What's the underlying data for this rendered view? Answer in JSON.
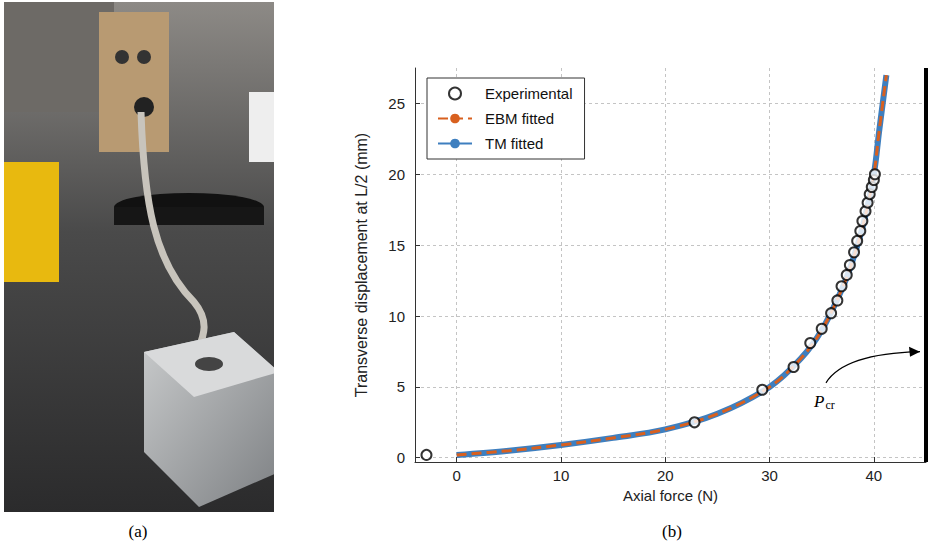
{
  "chart_data": {
    "type": "line",
    "xlabel": "Axial force (N)",
    "ylabel": "Transverse displacement at L/2 (mm)",
    "xlim": [
      -4,
      45
    ],
    "ylim": [
      -0.3,
      27.5
    ],
    "xticks": [
      0,
      10,
      20,
      30,
      40
    ],
    "yticks": [
      0,
      5,
      10,
      15,
      20,
      25
    ],
    "grid": true,
    "legend": "upper left",
    "series": [
      {
        "name": "Experimental",
        "type": "scatter",
        "marker": "open circle",
        "color": "#000000",
        "x": [
          -2.9,
          22.8,
          29.3,
          32.3,
          33.9,
          35.0,
          35.9,
          36.5,
          36.9,
          37.4,
          37.7,
          38.1,
          38.4,
          38.7,
          38.9,
          39.2,
          39.4,
          39.6,
          39.8,
          40.0,
          40.1
        ],
        "values": [
          0.2,
          2.5,
          4.8,
          6.4,
          8.1,
          9.1,
          10.2,
          11.1,
          12.1,
          12.9,
          13.6,
          14.5,
          15.3,
          16.0,
          16.7,
          17.4,
          18.0,
          18.6,
          19.1,
          19.6,
          20.0
        ]
      },
      {
        "name": "EBM fitted",
        "type": "line",
        "line_style": "dashed",
        "color": "#d8601f",
        "x": [
          0,
          5,
          10,
          15,
          20,
          25,
          30,
          33,
          35,
          37,
          38,
          39,
          40,
          40.5,
          41.2
        ],
        "values": [
          0.2,
          0.5,
          0.9,
          1.4,
          2.0,
          3.1,
          5.0,
          7.0,
          9.0,
          12.0,
          14.0,
          16.5,
          20.0,
          23.0,
          27.0
        ]
      },
      {
        "name": "TM fitted",
        "type": "line",
        "line_style": "solid",
        "color": "#3e7fbf",
        "x": [
          0,
          5,
          10,
          15,
          20,
          25,
          30,
          33,
          35,
          37,
          38,
          39,
          40,
          40.5,
          41.2
        ],
        "values": [
          0.2,
          0.5,
          0.9,
          1.4,
          2.0,
          3.1,
          5.0,
          7.0,
          9.0,
          12.0,
          14.0,
          16.5,
          20.0,
          23.0,
          27.0
        ]
      }
    ],
    "annotations": [
      {
        "text": "P",
        "subscript": "cr",
        "x": 45
      }
    ]
  },
  "panel_labels": [
    "(a)",
    "(b)"
  ]
}
